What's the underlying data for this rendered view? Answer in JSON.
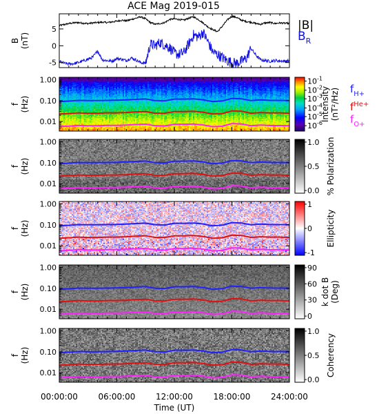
{
  "chart_data": {
    "title": "ACE Mag 2019-015",
    "x_axis": {
      "label": "Time (UT)",
      "ticks": [
        "00:00:00",
        "06:00:00",
        "12:00:00",
        "18:00:00",
        "24:00:00"
      ],
      "range_hours": [
        0,
        24
      ]
    },
    "colors": {
      "fH": "#2020ff",
      "fHe": "#e01010",
      "fO": "#ff20ff",
      "B_total": "#000000",
      "B_R": "#1010e0"
    },
    "panels": [
      {
        "type": "line",
        "ylabel": "B",
        "yunit": "(nT)",
        "ylim": [
          -6.5,
          9.5
        ],
        "yticks": [
          "5",
          "0",
          "-5"
        ],
        "ytick_values": [
          5,
          0,
          -5
        ],
        "legend": [
          {
            "label": "|B|",
            "color": "#000000"
          },
          {
            "label": "B",
            "sub": "R",
            "color": "#1010e0"
          }
        ],
        "series": [
          {
            "name": "|B|",
            "x": [
              0,
              0.5,
              1,
              1.5,
              2,
              2.5,
              3,
              3.5,
              4,
              4.5,
              5,
              5.5,
              6,
              6.5,
              7,
              7.5,
              8,
              8.5,
              9,
              9.5,
              10,
              10.5,
              11,
              11.5,
              12,
              12.5,
              13,
              13.5,
              14,
              14.5,
              15,
              15.5,
              16,
              16.5,
              17,
              17.5,
              18,
              18.5,
              19,
              19.5,
              20,
              20.5,
              21,
              21.5,
              22,
              22.5,
              23,
              23.5,
              24
            ],
            "y": [
              6.0,
              6.3,
              6.6,
              6.8,
              6.9,
              6.7,
              6.6,
              6.8,
              6.9,
              7.0,
              6.9,
              7.1,
              7.3,
              7.6,
              7.4,
              7.8,
              8.2,
              8.6,
              8.0,
              6.9,
              6.4,
              6.6,
              6.9,
              7.8,
              8.0,
              7.8,
              7.6,
              8.2,
              8.6,
              7.8,
              6.8,
              5.6,
              4.8,
              4.2,
              5.8,
              7.6,
              8.8,
              8.4,
              7.6,
              7.2,
              7.0,
              6.6,
              6.4,
              6.8,
              6.9,
              6.6,
              6.8,
              6.7,
              6.6
            ]
          },
          {
            "name": "B_R",
            "x": [
              0,
              0.5,
              1,
              1.5,
              2,
              2.5,
              3,
              3.5,
              4,
              4.5,
              5,
              5.5,
              6,
              6.5,
              7,
              7.5,
              8,
              8.5,
              9,
              9.5,
              10,
              10.5,
              11,
              11.5,
              12,
              12.5,
              13,
              13.5,
              14,
              14.5,
              15,
              15.5,
              16,
              16.5,
              17,
              17.5,
              18,
              18.5,
              19,
              19.5,
              20,
              20.5,
              21,
              21.5,
              22,
              22.5,
              23,
              23.5,
              24
            ],
            "y": [
              -4.6,
              -5.2,
              -5.4,
              -5.3,
              -5.0,
              -4.5,
              -4.0,
              -3.4,
              -1.5,
              -4.2,
              -4.4,
              -4.6,
              -3.8,
              -4.0,
              -4.4,
              -3.6,
              -4.2,
              -5.0,
              -5.2,
              0.5,
              0.0,
              1.0,
              0.2,
              -0.5,
              -2.2,
              -2.6,
              -2.0,
              0.5,
              3.2,
              2.6,
              4.0,
              1.2,
              -1.8,
              -2.6,
              -3.5,
              -4.4,
              -5.0,
              -5.2,
              -4.6,
              -3.8,
              -0.8,
              -2.8,
              -4.2,
              -4.4,
              -4.6,
              -4.4,
              -4.5,
              -4.6,
              -4.5
            ]
          }
        ]
      },
      {
        "type": "heatmap",
        "quantity": "Intensity",
        "ylabel": "f",
        "yunit": "(Hz)",
        "cbar_label": "Intensity",
        "cbar_unit": "(nT²/Hz)",
        "cbar_ticks": [
          {
            "base": "10",
            "exp": "-1",
            "frac": 0.07
          },
          {
            "base": "10",
            "exp": "-2",
            "frac": 0.24
          },
          {
            "base": "10",
            "exp": "-3",
            "frac": 0.4
          },
          {
            "base": "10",
            "exp": "-4",
            "frac": 0.57
          },
          {
            "base": "10",
            "exp": "-5",
            "frac": 0.73
          },
          {
            "base": "10",
            "exp": "-6",
            "frac": 0.9
          }
        ],
        "legend": [
          {
            "label": "f",
            "sub": "H+",
            "color": "#2020ff"
          },
          {
            "label": "f",
            "sup": "He+",
            "color": "#e01010"
          },
          {
            "label": "f",
            "sub": "O+",
            "color": "#ff20ff"
          }
        ]
      },
      {
        "type": "heatmap",
        "quantity": "% Polarization",
        "ylabel": "f",
        "yunit": "(Hz)",
        "cbar_label": "% Polarization",
        "cbar_ticks": [
          {
            "label": "1.0",
            "frac": 0.05
          },
          {
            "label": "0.5",
            "frac": 0.5
          },
          {
            "label": "0.0",
            "frac": 0.95
          }
        ]
      },
      {
        "type": "heatmap",
        "quantity": "Ellipticity",
        "ylabel": "f",
        "yunit": "(Hz)",
        "cbar_label": "Ellipticity",
        "cbar_ticks": [
          {
            "label": "1",
            "frac": 0.05
          },
          {
            "label": "0",
            "frac": 0.5
          },
          {
            "label": "-1",
            "frac": 0.95
          }
        ]
      },
      {
        "type": "heatmap",
        "quantity": "k dot B",
        "ylabel": "f",
        "yunit": "(Hz)",
        "cbar_label": "k dot B",
        "cbar_unit": "(Deg)",
        "cbar_ticks": [
          {
            "label": "90",
            "frac": 0.05
          },
          {
            "label": "60",
            "frac": 0.35
          },
          {
            "label": "30",
            "frac": 0.65
          },
          {
            "label": "0",
            "frac": 0.95
          }
        ]
      },
      {
        "type": "heatmap",
        "quantity": "Coherency",
        "ylabel": "f",
        "yunit": "(Hz)",
        "cbar_label": "Coherency",
        "cbar_ticks": [
          {
            "label": "1.0",
            "frac": 0.05
          },
          {
            "label": "0.5",
            "frac": 0.5
          },
          {
            "label": "0.0",
            "frac": 0.95
          }
        ]
      }
    ],
    "freq_axis": {
      "scale": "log",
      "range_hz": [
        0.0035,
        1.3
      ],
      "ticks": [
        "1.00",
        "0.10",
        "0.01"
      ],
      "tick_values": [
        1.0,
        0.1,
        0.01
      ]
    },
    "gyrofrequency_lines": {
      "x_hours": [
        0,
        1,
        2,
        3,
        4,
        5,
        6,
        7,
        8,
        9,
        10,
        11,
        12,
        13,
        14,
        15,
        16,
        17,
        18,
        19,
        20,
        21,
        22,
        23,
        24
      ],
      "fH_hz": [
        0.09,
        0.095,
        0.102,
        0.1,
        0.1,
        0.102,
        0.104,
        0.108,
        0.115,
        0.12,
        0.1,
        0.098,
        0.118,
        0.118,
        0.122,
        0.11,
        0.09,
        0.096,
        0.128,
        0.122,
        0.1,
        0.108,
        0.102,
        0.102,
        0.1
      ],
      "fHe_hz": [
        0.023,
        0.024,
        0.026,
        0.025,
        0.025,
        0.026,
        0.026,
        0.027,
        0.029,
        0.03,
        0.025,
        0.025,
        0.03,
        0.03,
        0.031,
        0.028,
        0.023,
        0.024,
        0.032,
        0.031,
        0.025,
        0.027,
        0.026,
        0.026,
        0.025
      ],
      "fO_hz": [
        0.0058,
        0.006,
        0.0065,
        0.0063,
        0.0063,
        0.0065,
        0.0065,
        0.0068,
        0.0072,
        0.0075,
        0.0063,
        0.0062,
        0.0074,
        0.0074,
        0.0076,
        0.0069,
        0.0057,
        0.006,
        0.008,
        0.0077,
        0.0063,
        0.0068,
        0.0064,
        0.0064,
        0.0063
      ]
    }
  }
}
